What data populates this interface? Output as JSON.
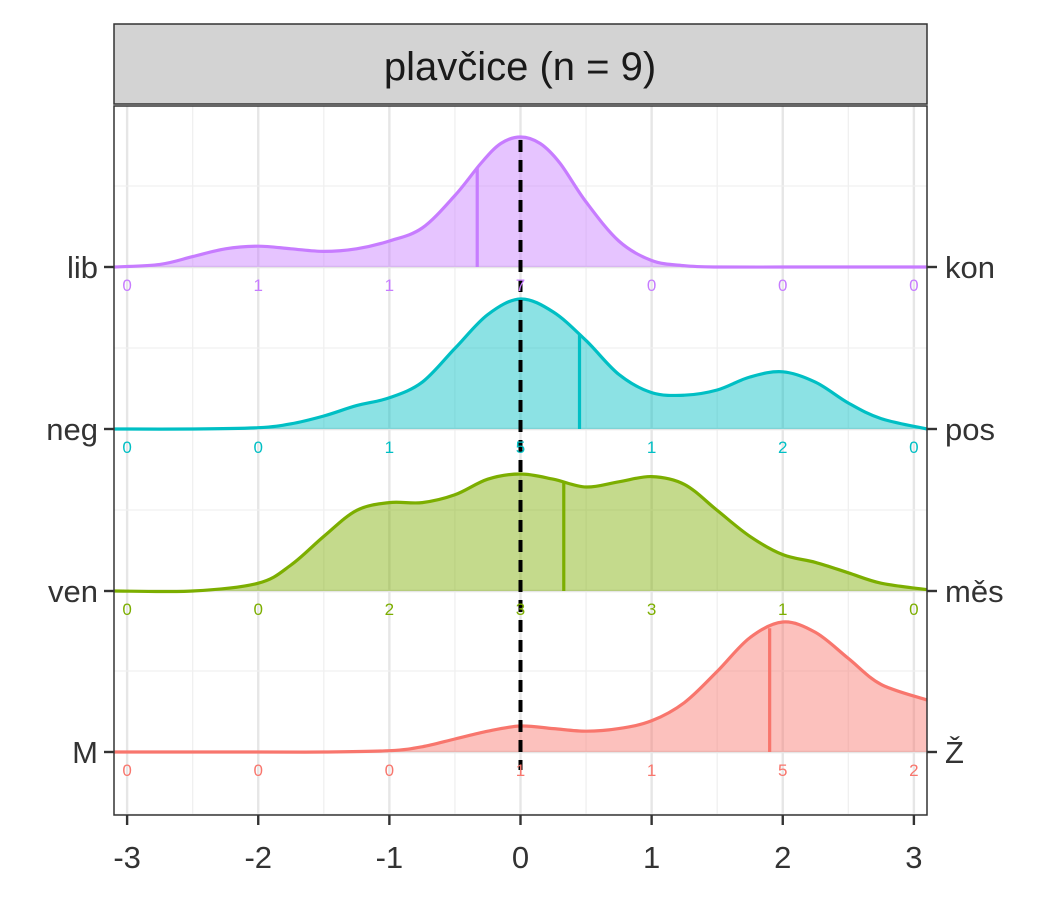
{
  "chart_data": {
    "type": "ridgeline",
    "title": "plavčice (n = 9)",
    "xlabel": "",
    "ylabel": "",
    "xlim": [
      -3.1,
      3.1
    ],
    "x_ticks": [
      "-3",
      "-2",
      "-1",
      "0",
      "1",
      "2",
      "3"
    ],
    "x_tick_values": [
      -3,
      -2,
      -1,
      0,
      1,
      2,
      3
    ],
    "reference_line_x": 0,
    "grid": true,
    "bins": [
      -3,
      -2,
      -1,
      0,
      1,
      2,
      3
    ],
    "series": [
      {
        "left_label": "lib",
        "right_label": "kon",
        "color": "#C77CFF",
        "counts": [
          "0",
          "1",
          "1",
          "7",
          "0",
          "0",
          "0"
        ],
        "mean": -0.33,
        "density_x": [
          -3.1,
          -2.75,
          -2.5,
          -2.25,
          -2.0,
          -1.75,
          -1.5,
          -1.25,
          -1.0,
          -0.75,
          -0.5,
          -0.3,
          -0.15,
          0.0,
          0.15,
          0.3,
          0.5,
          0.75,
          1.0,
          1.25,
          1.5,
          2.0,
          2.5,
          3.1
        ],
        "density_y": [
          0.0,
          0.02,
          0.08,
          0.14,
          0.16,
          0.14,
          0.12,
          0.14,
          0.2,
          0.3,
          0.55,
          0.8,
          0.95,
          1.0,
          0.95,
          0.8,
          0.5,
          0.2,
          0.05,
          0.01,
          0.0,
          0.0,
          0.0,
          0.0
        ]
      },
      {
        "left_label": "neg",
        "right_label": "pos",
        "color": "#00BFC4",
        "counts": [
          "0",
          "0",
          "1",
          "5",
          "1",
          "2",
          "0"
        ],
        "mean": 0.45,
        "density_x": [
          -3.1,
          -2.5,
          -2.0,
          -1.75,
          -1.5,
          -1.25,
          -1.0,
          -0.75,
          -0.5,
          -0.25,
          0.0,
          0.25,
          0.5,
          0.75,
          1.0,
          1.25,
          1.5,
          1.75,
          2.0,
          2.25,
          2.5,
          2.75,
          3.1
        ],
        "density_y": [
          0.0,
          0.0,
          0.01,
          0.04,
          0.1,
          0.18,
          0.24,
          0.36,
          0.62,
          0.88,
          1.0,
          0.9,
          0.68,
          0.42,
          0.28,
          0.26,
          0.3,
          0.4,
          0.44,
          0.36,
          0.2,
          0.08,
          0.0
        ]
      },
      {
        "left_label": "ven",
        "right_label": "měs",
        "color": "#7CAE00",
        "counts": [
          "0",
          "0",
          "2",
          "3",
          "3",
          "1",
          "0"
        ],
        "mean": 0.33,
        "density_x": [
          -3.1,
          -2.5,
          -2.0,
          -1.75,
          -1.5,
          -1.25,
          -1.0,
          -0.75,
          -0.5,
          -0.25,
          0.0,
          0.25,
          0.5,
          0.75,
          1.0,
          1.25,
          1.5,
          1.75,
          2.0,
          2.25,
          2.5,
          2.75,
          3.1
        ],
        "density_y": [
          0.0,
          0.0,
          0.06,
          0.2,
          0.42,
          0.62,
          0.68,
          0.68,
          0.74,
          0.86,
          0.9,
          0.86,
          0.8,
          0.84,
          0.88,
          0.82,
          0.62,
          0.42,
          0.28,
          0.22,
          0.14,
          0.06,
          0.01
        ]
      },
      {
        "left_label": "M",
        "right_label": "Ž",
        "color": "#F8766D",
        "counts": [
          "0",
          "0",
          "0",
          "1",
          "1",
          "5",
          "2"
        ],
        "mean": 1.9,
        "density_x": [
          -3.1,
          -2.0,
          -1.5,
          -1.0,
          -0.75,
          -0.5,
          -0.25,
          0.0,
          0.25,
          0.5,
          0.75,
          1.0,
          1.25,
          1.5,
          1.75,
          2.0,
          2.25,
          2.5,
          2.75,
          3.1
        ],
        "density_y": [
          0.0,
          0.0,
          0.0,
          0.01,
          0.04,
          0.1,
          0.16,
          0.2,
          0.18,
          0.16,
          0.18,
          0.24,
          0.38,
          0.62,
          0.88,
          1.0,
          0.92,
          0.72,
          0.52,
          0.4
        ]
      }
    ]
  }
}
